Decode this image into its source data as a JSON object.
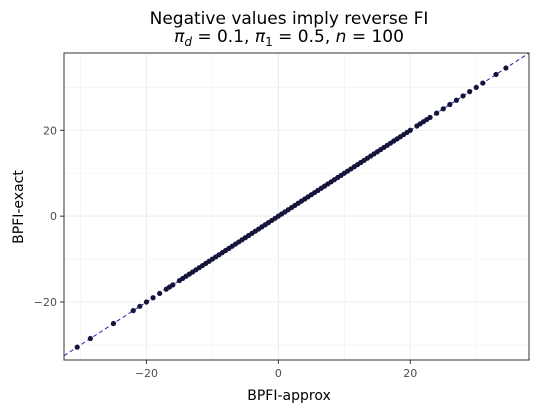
{
  "chart_data": {
    "type": "scatter",
    "title": "Negative values imply reverse FI",
    "subtitle_parts": {
      "pi_d_sym": "π",
      "pi_d_sub": "d",
      "pi_d_val": " = 0.1, ",
      "pi_1_sym": "π",
      "pi_1_sub": "1",
      "pi_1_val": " = 0.5, ",
      "n_sym": "n",
      "n_val": " = 100"
    },
    "xlabel": "BPFI-approx",
    "ylabel": "BPFI-exact",
    "xlim": [
      -32.5,
      38
    ],
    "ylim": [
      -33.5,
      38
    ],
    "xticks": [
      -20,
      0,
      20
    ],
    "yticks": [
      -20,
      0,
      20
    ],
    "grid": true,
    "reference_line": {
      "slope": 1,
      "intercept": 0,
      "style": "dashed",
      "color": "#1f1fb4"
    },
    "point_color": "#14143c",
    "x": [
      -30.5,
      -28.5,
      -25,
      -22,
      -21,
      -20,
      -19,
      -18,
      -17,
      -16.5,
      -16,
      -15,
      -14.5,
      -14,
      -13.5,
      -13,
      -12.5,
      -12,
      -11.5,
      -11,
      -10.5,
      -10,
      -9.5,
      -9,
      -8.5,
      -8,
      -7.5,
      -7,
      -6.5,
      -6,
      -5.5,
      -5,
      -4.5,
      -4,
      -3.5,
      -3,
      -2.5,
      -2,
      -1.5,
      -1,
      -0.5,
      0,
      0.5,
      1,
      1.5,
      2,
      2.5,
      3,
      3.5,
      4,
      4.5,
      5,
      5.5,
      6,
      6.5,
      7,
      7.5,
      8,
      8.5,
      9,
      9.5,
      10,
      10.5,
      11,
      11.5,
      12,
      12.5,
      13,
      13.5,
      14,
      14.5,
      15,
      15.5,
      16,
      16.5,
      17,
      17.5,
      18,
      18.5,
      19,
      19.5,
      20,
      21,
      21.5,
      22,
      22.5,
      23,
      24,
      25,
      26,
      27,
      28,
      29,
      30,
      31,
      33,
      34.5
    ],
    "y": [
      -30.5,
      -28.5,
      -25,
      -22,
      -21,
      -20,
      -19,
      -18,
      -17,
      -16.5,
      -16,
      -15,
      -14.5,
      -14,
      -13.5,
      -13,
      -12.5,
      -12,
      -11.5,
      -11,
      -10.5,
      -10,
      -9.5,
      -9,
      -8.5,
      -8,
      -7.5,
      -7,
      -6.5,
      -6,
      -5.5,
      -5,
      -4.5,
      -4,
      -3.5,
      -3,
      -2.5,
      -2,
      -1.5,
      -1,
      -0.5,
      0,
      0.5,
      1,
      1.5,
      2,
      2.5,
      3,
      3.5,
      4,
      4.5,
      5,
      5.5,
      6,
      6.5,
      7,
      7.5,
      8,
      8.5,
      9,
      9.5,
      10,
      10.5,
      11,
      11.5,
      12,
      12.5,
      13,
      13.5,
      14,
      14.5,
      15,
      15.5,
      16,
      16.5,
      17,
      17.5,
      18,
      18.5,
      19,
      19.5,
      20,
      21,
      21.5,
      22,
      22.5,
      23,
      24,
      25,
      26,
      27,
      28,
      29,
      30,
      31,
      33,
      34.5
    ]
  }
}
